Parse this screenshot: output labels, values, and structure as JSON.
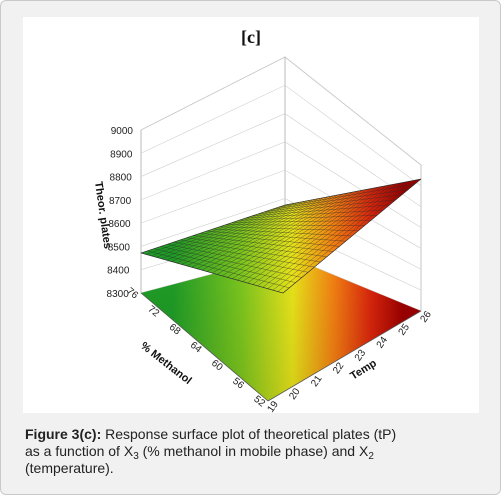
{
  "chart_data": {
    "type": "surface3d",
    "title": "[c]",
    "xlabel": "Temp",
    "ylabel": "% Methanol",
    "zlabel": "Theor. plates",
    "x_ticks": [
      "19",
      "20",
      "21",
      "22",
      "23",
      "24",
      "25",
      "26"
    ],
    "y_ticks": [
      "52",
      "56",
      "60",
      "64",
      "68",
      "72",
      "76"
    ],
    "z_ticks": [
      "8300",
      "8400",
      "8500",
      "8600",
      "8700",
      "8800",
      "8900",
      "9000"
    ],
    "xlim": [
      19,
      26
    ],
    "ylim": [
      52,
      76
    ],
    "zlim": [
      8300,
      9000
    ],
    "surface": {
      "type": "plane",
      "corners": [
        {
          "temp": 19,
          "methanol": 76,
          "plates": 8400
        },
        {
          "temp": 26,
          "methanol": 76,
          "plates": 8730
        },
        {
          "temp": 26,
          "methanol": 52,
          "plates": 8620
        },
        {
          "temp": 19,
          "methanol": 52,
          "plates": 8330
        }
      ]
    },
    "colors": {
      "low": "#1f9a26",
      "mid": "#e6e21a",
      "high": "#a60000"
    }
  },
  "caption": {
    "label": "Figure 3(c):",
    "line1": " Response surface plot of theoretical plates (tP)",
    "line2a": "as a function of X",
    "sub1": "3",
    "line2b": " (% methanol in mobile phase) and X",
    "sub2": "2",
    "line3": "(temperature)."
  }
}
